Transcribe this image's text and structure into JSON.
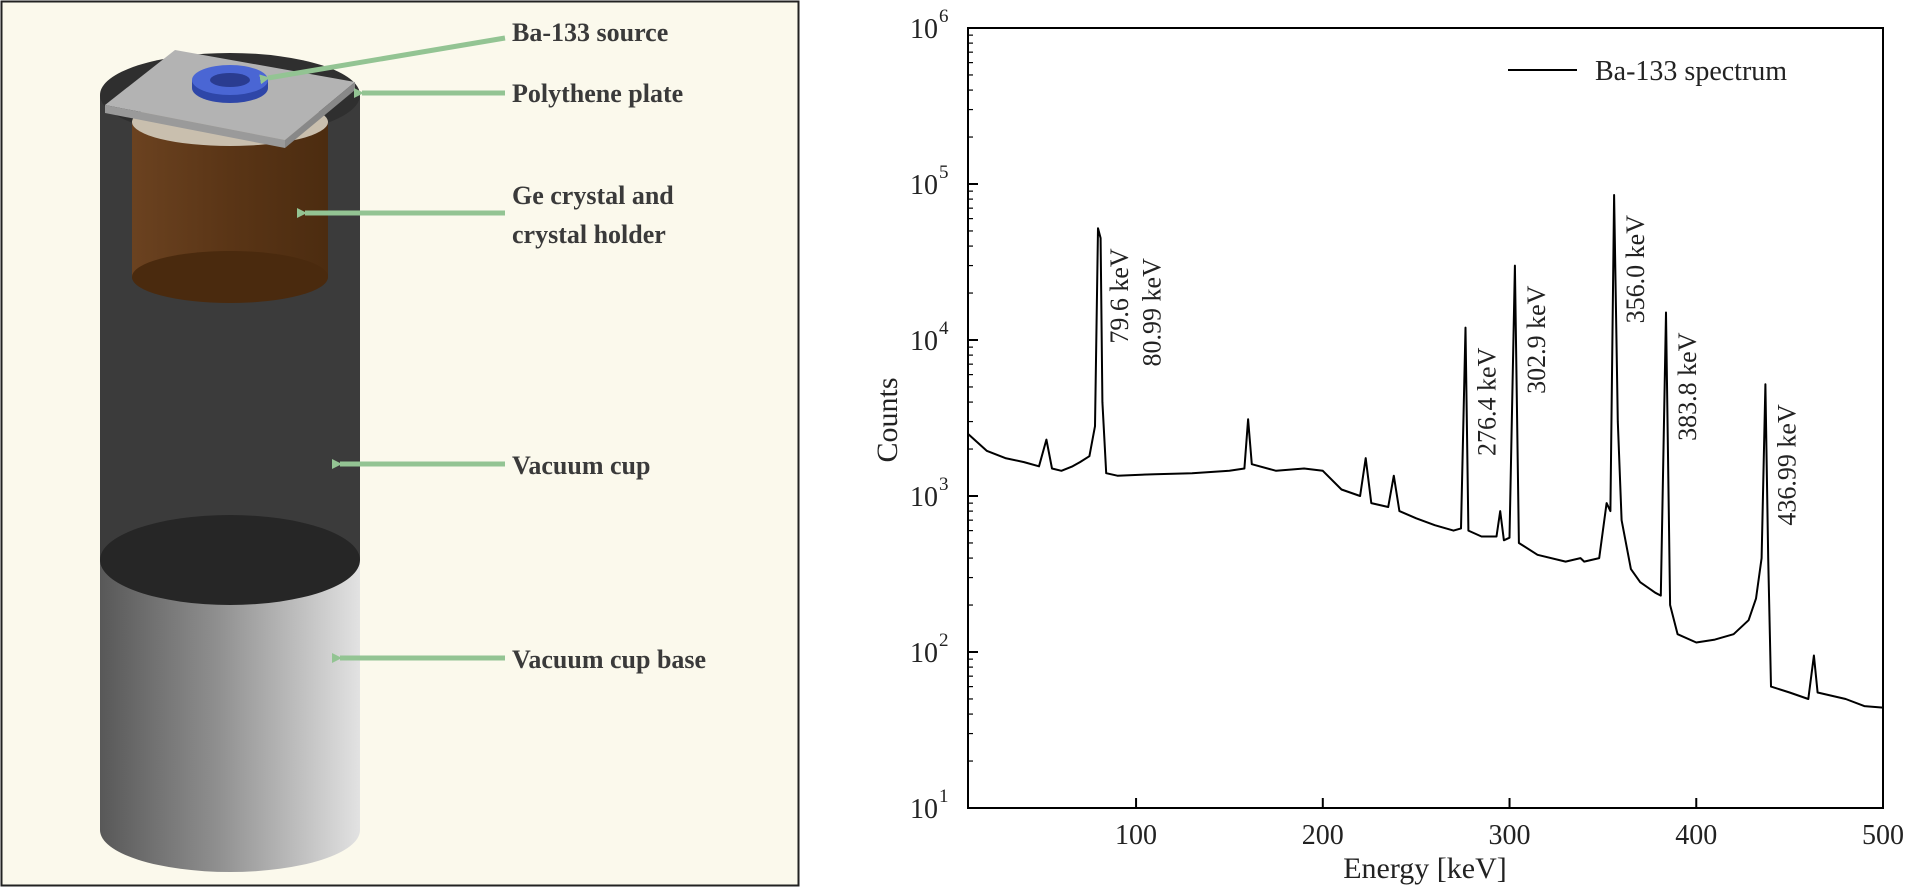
{
  "diagram": {
    "labels": {
      "source": "Ba-133 source",
      "plate": "Polythene plate",
      "crystal_line1": "Ge crystal and",
      "crystal_line2": "crystal holder",
      "cup": "Vacuum cup",
      "base": "Vacuum cup base"
    },
    "colors": {
      "background": "#fbf9ec",
      "arrow": "#93c493",
      "cup": "#3d3d3d",
      "crystal": "#5c3818",
      "source": "#3a56c4",
      "plate": "#b9b9b9"
    }
  },
  "chart_data": {
    "type": "line",
    "xlabel": "Energy [keV]",
    "ylabel": "Counts",
    "xlim": [
      10,
      500
    ],
    "ylim": [
      10,
      1000000
    ],
    "yscale": "log",
    "x_ticks": [
      "100",
      "200",
      "300",
      "400",
      "500"
    ],
    "y_ticks": [
      {
        "base": "10",
        "exp": "1"
      },
      {
        "base": "10",
        "exp": "2"
      },
      {
        "base": "10",
        "exp": "3"
      },
      {
        "base": "10",
        "exp": "4"
      },
      {
        "base": "10",
        "exp": "5"
      },
      {
        "base": "10",
        "exp": "6"
      }
    ],
    "legend": {
      "label": "Ba-133 spectrum",
      "position": "top-right"
    },
    "grid": false,
    "series_color": "#000000",
    "series": [
      {
        "name": "Ba-133 spectrum",
        "points": [
          [
            10,
            2500
          ],
          [
            20,
            1950
          ],
          [
            30,
            1750
          ],
          [
            40,
            1650
          ],
          [
            48,
            1550
          ],
          [
            52,
            2300
          ],
          [
            55,
            1500
          ],
          [
            60,
            1450
          ],
          [
            66,
            1550
          ],
          [
            70,
            1650
          ],
          [
            75,
            1800
          ],
          [
            78,
            2800
          ],
          [
            79.6,
            52000
          ],
          [
            81,
            45000
          ],
          [
            82,
            4000
          ],
          [
            84,
            1400
          ],
          [
            90,
            1350
          ],
          [
            110,
            1380
          ],
          [
            130,
            1400
          ],
          [
            150,
            1450
          ],
          [
            158,
            1500
          ],
          [
            160,
            3100
          ],
          [
            162,
            1600
          ],
          [
            175,
            1450
          ],
          [
            190,
            1500
          ],
          [
            200,
            1450
          ],
          [
            210,
            1100
          ],
          [
            220,
            1000
          ],
          [
            223,
            1750
          ],
          [
            226,
            900
          ],
          [
            235,
            850
          ],
          [
            238,
            1350
          ],
          [
            241,
            800
          ],
          [
            250,
            720
          ],
          [
            260,
            650
          ],
          [
            270,
            600
          ],
          [
            274,
            620
          ],
          [
            276.4,
            12000
          ],
          [
            278,
            600
          ],
          [
            285,
            550
          ],
          [
            293,
            550
          ],
          [
            295,
            800
          ],
          [
            297,
            520
          ],
          [
            300,
            540
          ],
          [
            302.9,
            30000
          ],
          [
            305,
            500
          ],
          [
            315,
            420
          ],
          [
            330,
            380
          ],
          [
            338,
            400
          ],
          [
            340,
            380
          ],
          [
            348,
            400
          ],
          [
            352,
            900
          ],
          [
            354,
            800
          ],
          [
            356,
            85000
          ],
          [
            358,
            3000
          ],
          [
            360,
            700
          ],
          [
            365,
            340
          ],
          [
            370,
            280
          ],
          [
            378,
            240
          ],
          [
            381,
            230
          ],
          [
            383.8,
            15000
          ],
          [
            386,
            200
          ],
          [
            390,
            130
          ],
          [
            400,
            115
          ],
          [
            410,
            120
          ],
          [
            420,
            130
          ],
          [
            428,
            160
          ],
          [
            432,
            220
          ],
          [
            435,
            400
          ],
          [
            437,
            5200
          ],
          [
            438.5,
            400
          ],
          [
            440,
            60
          ],
          [
            450,
            55
          ],
          [
            460,
            50
          ],
          [
            463,
            95
          ],
          [
            465,
            55
          ],
          [
            480,
            50
          ],
          [
            490,
            45
          ],
          [
            500,
            44
          ]
        ]
      }
    ],
    "annotations": [
      {
        "text": "79.6 keV",
        "x": 79.6,
        "y": 52000
      },
      {
        "text": "80.99 keV",
        "x": 80.99,
        "y": 45000
      },
      {
        "text": "276.4 keV",
        "x": 276.4,
        "y": 12000
      },
      {
        "text": "302.9 keV",
        "x": 302.9,
        "y": 30000
      },
      {
        "text": "356.0 keV",
        "x": 356.0,
        "y": 85000
      },
      {
        "text": "383.8 keV",
        "x": 383.8,
        "y": 15000
      },
      {
        "text": "436.99 keV",
        "x": 436.99,
        "y": 5200
      }
    ]
  }
}
